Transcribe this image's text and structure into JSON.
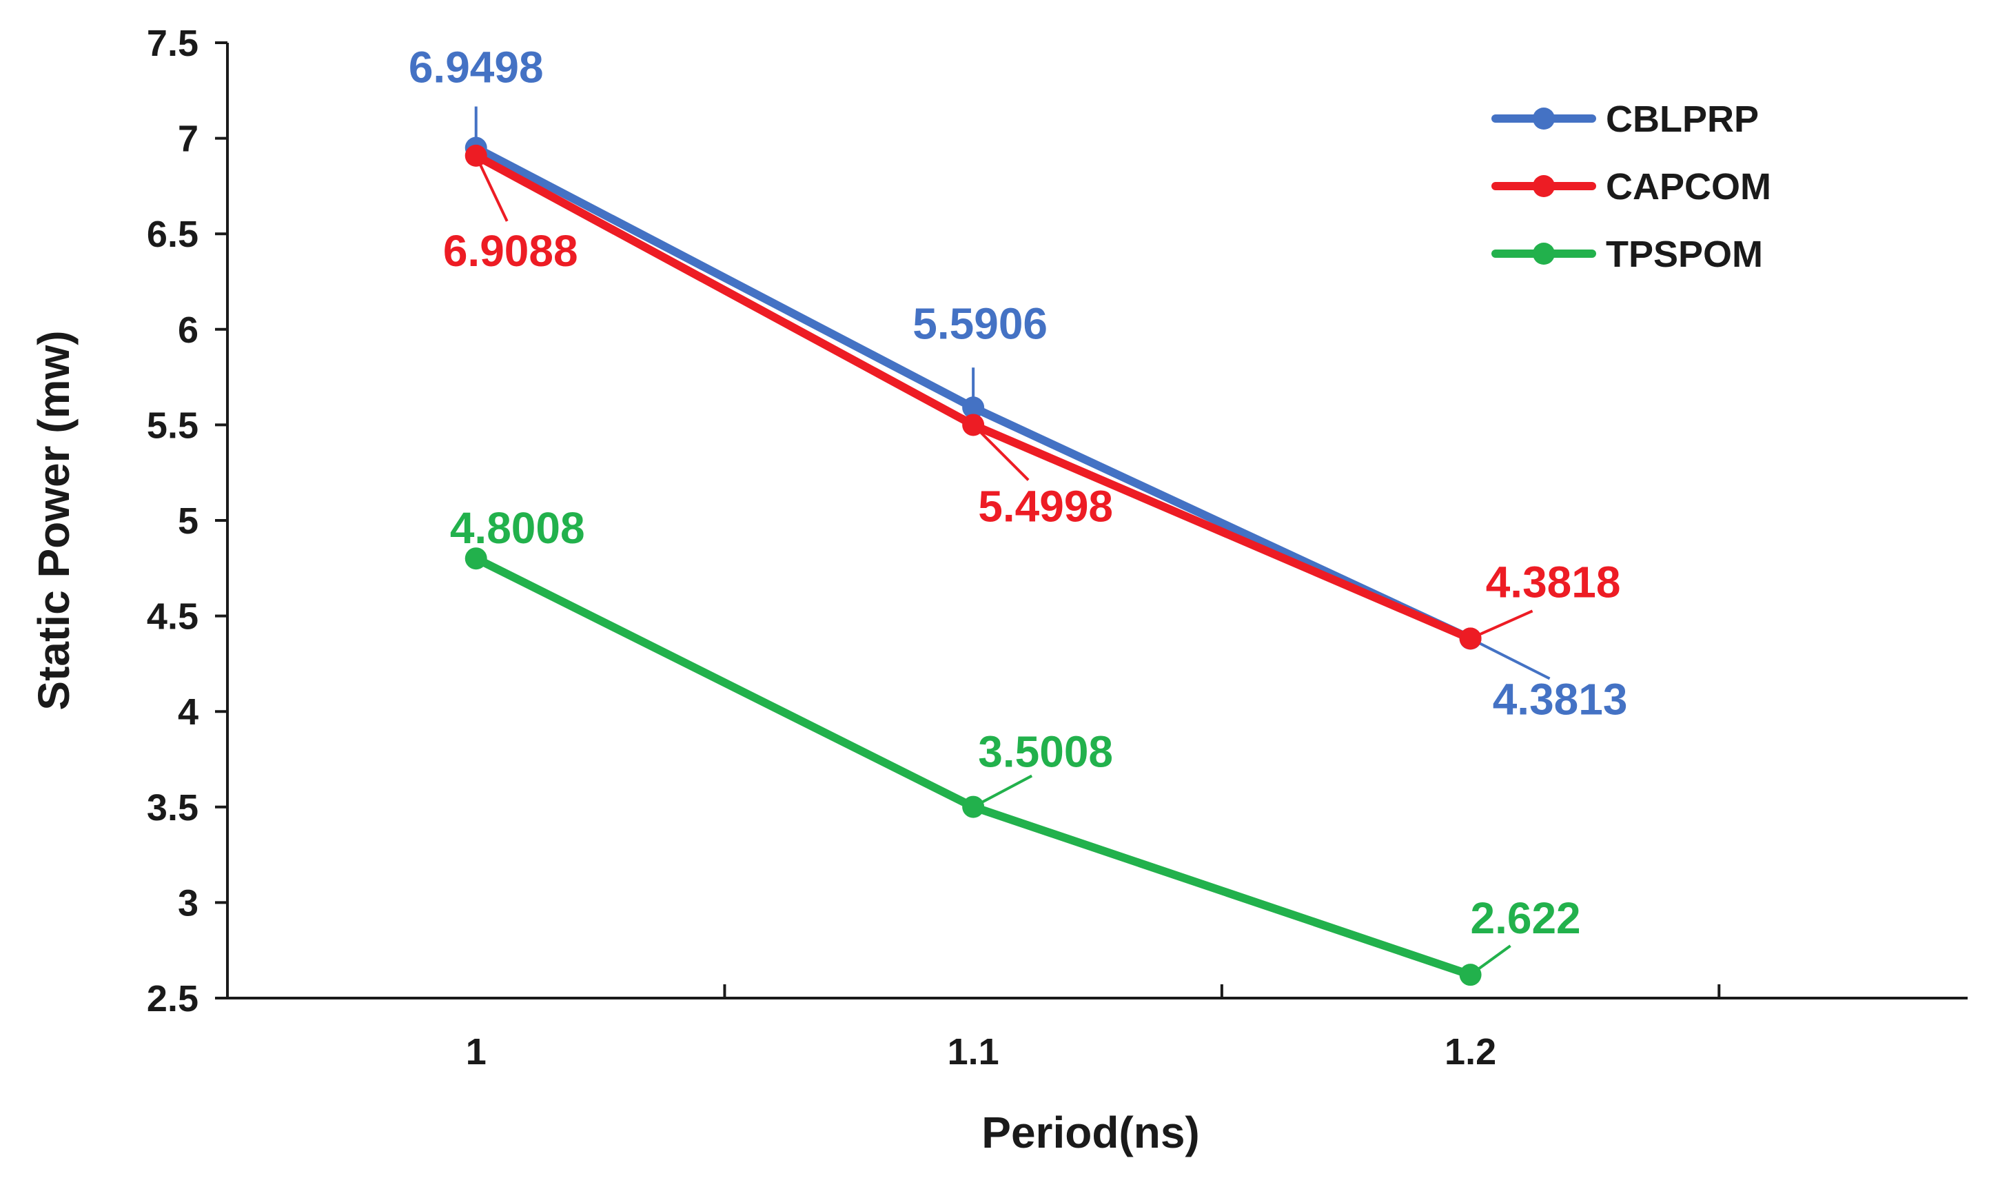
{
  "chart_data": {
    "type": "line",
    "title": "",
    "xlabel": "Period(ns)",
    "ylabel": "Static Power (mw)",
    "categories": [
      "1",
      "1.1",
      "1.2"
    ],
    "yticks": [
      "2.5",
      "3",
      "3.5",
      "4",
      "4.5",
      "5",
      "5.5",
      "6",
      "6.5",
      "7",
      "7.5"
    ],
    "ylim": [
      2.5,
      7.5
    ],
    "grid": false,
    "legend_position": "top-right",
    "series": [
      {
        "name": "CBLPRP",
        "color": "#4472c4",
        "values": [
          6.9498,
          5.5906,
          4.3813
        ],
        "labels": [
          "6.9498",
          "5.5906",
          "4.3813"
        ]
      },
      {
        "name": "CAPCOM",
        "color": "#ed1c24",
        "values": [
          6.9088,
          5.4998,
          4.3818
        ],
        "labels": [
          "6.9088",
          "5.4998",
          "4.3818"
        ]
      },
      {
        "name": "TPSPOM",
        "color": "#22b14c",
        "values": [
          4.8008,
          3.5008,
          2.622
        ],
        "labels": [
          "4.8008",
          "3.5008",
          "2.622"
        ]
      }
    ]
  }
}
